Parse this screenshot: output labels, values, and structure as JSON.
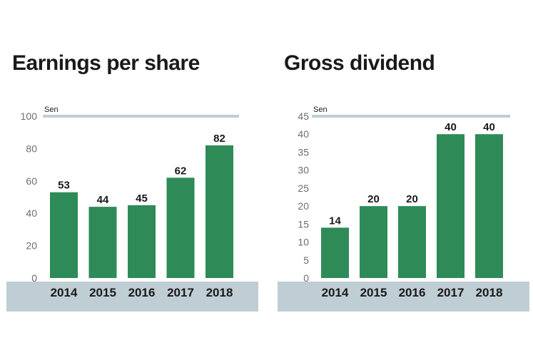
{
  "colors": {
    "bar": "#2e8b57",
    "axis_band": "#bfcdd4",
    "top_rule": "#bfcdd4",
    "text": "#1a1a1a",
    "tick_text": "#6e6e6e"
  },
  "chart_data": [
    {
      "type": "bar",
      "title": "Earnings per share",
      "unit_label": "Sen",
      "categories": [
        "2014",
        "2015",
        "2016",
        "2017",
        "2018"
      ],
      "values": [
        53,
        44,
        45,
        62,
        82
      ],
      "ylim": [
        0,
        100
      ],
      "yticks": [
        0,
        20,
        40,
        60,
        80,
        100
      ],
      "grid": false,
      "legend": "none"
    },
    {
      "type": "bar",
      "title": "Gross dividend",
      "unit_label": "Sen",
      "categories": [
        "2014",
        "2015",
        "2016",
        "2017",
        "2018"
      ],
      "values": [
        14,
        20,
        20,
        40,
        40
      ],
      "ylim": [
        0,
        45
      ],
      "yticks": [
        0,
        5,
        10,
        15,
        20,
        25,
        30,
        35,
        40,
        45
      ],
      "grid": false,
      "legend": "none"
    }
  ]
}
